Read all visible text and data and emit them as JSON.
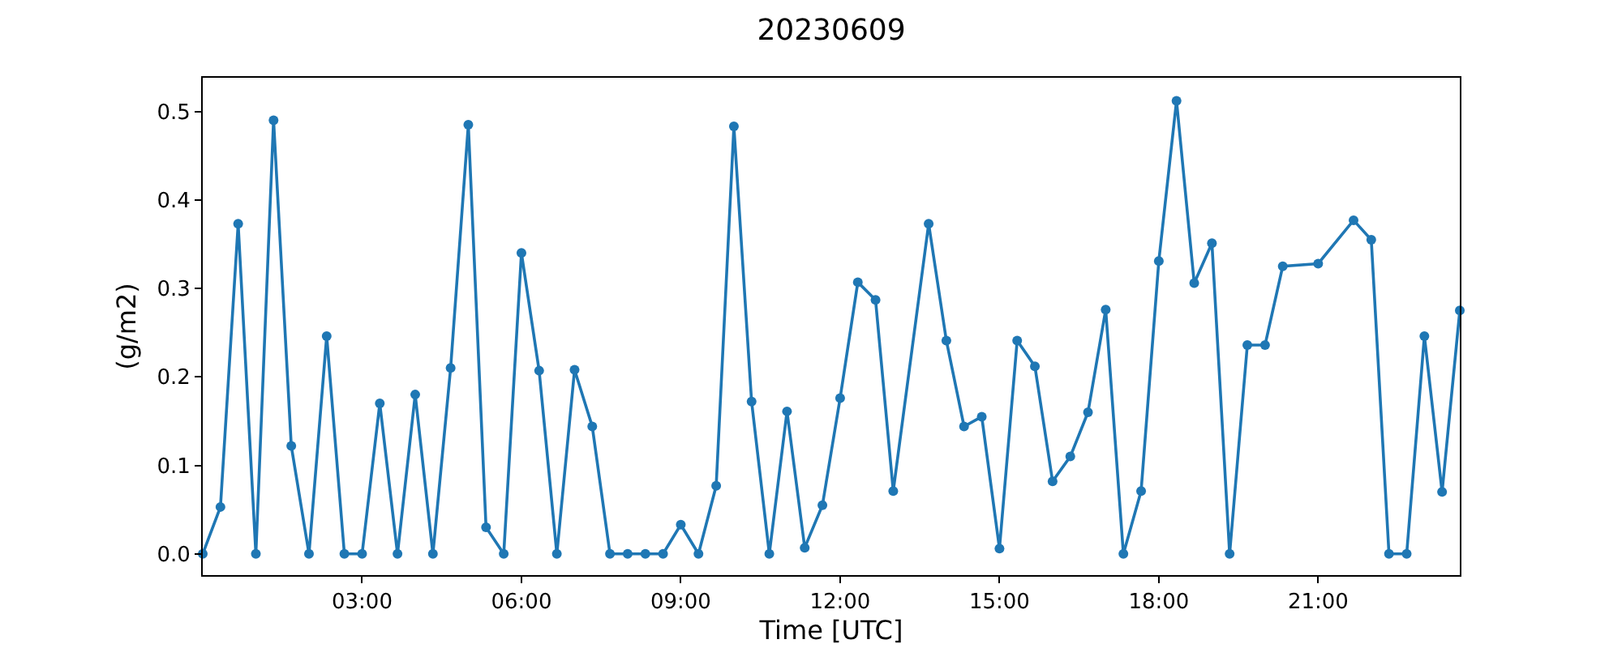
{
  "chart_data": {
    "type": "line",
    "title": "20230609",
    "xlabel": "Time [UTC]",
    "ylabel": "(g/m2)",
    "marker": "circle",
    "grid": false,
    "legend": false,
    "x": [
      0,
      0.3333,
      0.6667,
      1,
      1.3333,
      1.6667,
      2,
      2.3333,
      2.6667,
      3,
      3.3333,
      3.6667,
      4,
      4.3333,
      4.6667,
      5,
      5.3333,
      5.6667,
      6,
      6.3333,
      6.6667,
      7,
      7.3333,
      7.6667,
      8,
      8.3333,
      8.6667,
      9,
      9.3333,
      9.6667,
      10,
      10.3333,
      10.6667,
      11,
      11.3333,
      11.6667,
      12,
      12.3333,
      12.6667,
      13,
      13.6667,
      14,
      14.3333,
      14.6667,
      15,
      15.3333,
      15.6667,
      16,
      16.3333,
      16.6667,
      17,
      17.3333,
      17.6667,
      18,
      18.3333,
      18.6667,
      19,
      19.3333,
      19.6667,
      20,
      20.3333,
      21,
      21.6667,
      22,
      22.3333,
      22.6667,
      23,
      23.3333,
      23.6667
    ],
    "series": [
      {
        "color": "#1f77b4",
        "values": [
          0,
          0.053,
          0.373,
          0,
          0.49,
          0.122,
          0,
          0.246,
          0,
          0,
          0.17,
          0,
          0.18,
          0,
          0.21,
          0.485,
          0.03,
          0,
          0.34,
          0.207,
          0,
          0.208,
          0.144,
          0,
          0,
          0,
          0,
          0.033,
          0,
          0.077,
          0.483,
          0.172,
          0,
          0.161,
          0.007,
          0.055,
          0.176,
          0.307,
          0.287,
          0.071,
          0.373,
          0.241,
          0.144,
          0.155,
          0.006,
          0.241,
          0.212,
          0.082,
          0.11,
          0.16,
          0.276,
          0,
          0.071,
          0.331,
          0.512,
          0.306,
          0.351,
          0,
          0.236,
          0.236,
          0.325,
          0.328,
          0.377,
          0.355,
          0,
          0,
          0.246,
          0.07,
          0.275
        ]
      }
    ],
    "xlim": [
      0,
      23.6667
    ],
    "xticks": [
      {
        "value": 3,
        "label": "03:00"
      },
      {
        "value": 6,
        "label": "06:00"
      },
      {
        "value": 9,
        "label": "09:00"
      },
      {
        "value": 12,
        "label": "12:00"
      },
      {
        "value": 15,
        "label": "15:00"
      },
      {
        "value": 18,
        "label": "18:00"
      },
      {
        "value": 21,
        "label": "21:00"
      }
    ],
    "ylim": [
      -0.024,
      0.538
    ],
    "yticks": [
      {
        "value": 0,
        "label": "0.0"
      },
      {
        "value": 0.1,
        "label": "0.1"
      },
      {
        "value": 0.2,
        "label": "0.2"
      },
      {
        "value": 0.3,
        "label": "0.3"
      },
      {
        "value": 0.4,
        "label": "0.4"
      },
      {
        "value": 0.5,
        "label": "0.5"
      }
    ]
  }
}
